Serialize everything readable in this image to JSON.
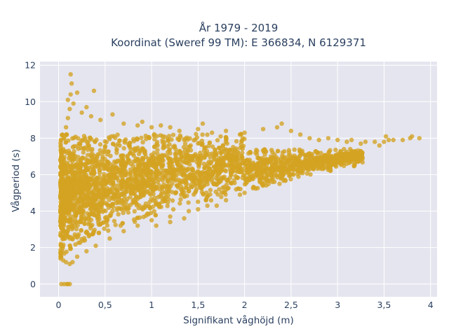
{
  "chart_data": {
    "type": "scatter",
    "title_line1": "År 1979 - 2019",
    "title_line2": "Koordinat (Sweref 99 TM): E 366834, N 6129371",
    "xlabel": "Signifikant våghöjd (m)",
    "ylabel": "Vågperiod (s)",
    "xlim": [
      -0.2,
      4.07
    ],
    "ylim": [
      -0.7,
      12.2
    ],
    "x_ticks": [
      0,
      0.5,
      1,
      1.5,
      2,
      2.5,
      3,
      3.5,
      4
    ],
    "x_tick_labels": [
      "0",
      "0,5",
      "1",
      "1,5",
      "2",
      "2,5",
      "3",
      "3,5",
      "4"
    ],
    "y_ticks": [
      0,
      2,
      4,
      6,
      8,
      10,
      12
    ],
    "y_tick_labels": [
      "0",
      "2",
      "4",
      "6",
      "8",
      "10",
      "12"
    ],
    "grid": true,
    "marker_color": "#d4a321",
    "plot_background": "#e5e5ef",
    "series": [
      {
        "name": "",
        "points": [
          [
            0.03,
            0
          ],
          [
            0.06,
            0
          ],
          [
            0.09,
            0
          ],
          [
            0.1,
            0
          ],
          [
            0.12,
            0
          ],
          [
            0.02,
            1.4
          ],
          [
            0.05,
            1.3
          ],
          [
            0.08,
            1.2
          ],
          [
            0.12,
            1.1
          ],
          [
            0.15,
            1.2
          ],
          [
            0.2,
            1.5
          ],
          [
            0.3,
            1.8
          ],
          [
            0.4,
            2.1
          ],
          [
            0.55,
            2.5
          ],
          [
            0.7,
            2.9
          ],
          [
            0.85,
            3.2
          ],
          [
            1.0,
            3.5
          ],
          [
            1.2,
            3.7
          ],
          [
            1.4,
            4.0
          ],
          [
            1.6,
            4.3
          ],
          [
            1.8,
            4.6
          ],
          [
            2.0,
            5.0
          ],
          [
            2.2,
            5.4
          ],
          [
            2.4,
            5.8
          ],
          [
            2.6,
            6.1
          ],
          [
            2.8,
            6.4
          ],
          [
            3.0,
            6.7
          ],
          [
            3.2,
            7.0
          ],
          [
            0.03,
            6.6
          ],
          [
            0.05,
            7.4
          ],
          [
            0.06,
            8.0
          ],
          [
            0.08,
            8.6
          ],
          [
            0.1,
            9.1
          ],
          [
            0.12,
            9.6
          ],
          [
            0.13,
            10.4
          ],
          [
            0.14,
            11.0
          ],
          [
            0.13,
            11.5
          ],
          [
            0.1,
            10.1
          ],
          [
            0.16,
            9.9
          ],
          [
            0.2,
            10.5
          ],
          [
            0.25,
            9.4
          ],
          [
            0.3,
            9.7
          ],
          [
            0.35,
            9.2
          ],
          [
            0.38,
            10.6
          ],
          [
            0.45,
            9.0
          ],
          [
            0.58,
            9.3
          ],
          [
            0.7,
            8.8
          ],
          [
            0.85,
            8.7
          ],
          [
            0.9,
            8.9
          ],
          [
            1.0,
            8.6
          ],
          [
            1.1,
            8.7
          ],
          [
            1.2,
            8.6
          ],
          [
            1.3,
            8.4
          ],
          [
            1.5,
            8.5
          ],
          [
            1.55,
            8.8
          ],
          [
            1.65,
            8.3
          ],
          [
            1.8,
            8.4
          ],
          [
            1.95,
            8.2
          ],
          [
            2.0,
            8.3
          ],
          [
            2.2,
            8.5
          ],
          [
            2.35,
            8.6
          ],
          [
            2.4,
            8.8
          ],
          [
            2.5,
            8.4
          ],
          [
            2.6,
            8.2
          ],
          [
            2.7,
            8.0
          ],
          [
            2.8,
            7.9
          ],
          [
            2.9,
            8.0
          ],
          [
            3.0,
            7.9
          ],
          [
            3.1,
            7.8
          ],
          [
            3.15,
            7.9
          ],
          [
            3.25,
            7.7
          ],
          [
            3.3,
            7.8
          ],
          [
            3.4,
            7.8
          ],
          [
            3.45,
            7.6
          ],
          [
            3.5,
            7.8
          ],
          [
            3.52,
            8.1
          ],
          [
            3.55,
            7.9
          ],
          [
            3.6,
            7.9
          ],
          [
            3.7,
            7.9
          ],
          [
            3.78,
            8.0
          ],
          [
            3.8,
            8.1
          ],
          [
            3.88,
            8.0
          ],
          [
            1.05,
            3.2
          ],
          [
            1.2,
            3.4
          ],
          [
            1.35,
            3.6
          ],
          [
            1.5,
            4.1
          ],
          [
            1.7,
            4.3
          ],
          [
            1.95,
            4.9
          ],
          [
            2.1,
            5.3
          ],
          [
            2.3,
            5.6
          ],
          [
            2.5,
            6.0
          ],
          [
            2.7,
            6.3
          ],
          [
            2.9,
            6.5
          ],
          [
            3.1,
            6.8
          ]
        ]
      }
    ]
  }
}
